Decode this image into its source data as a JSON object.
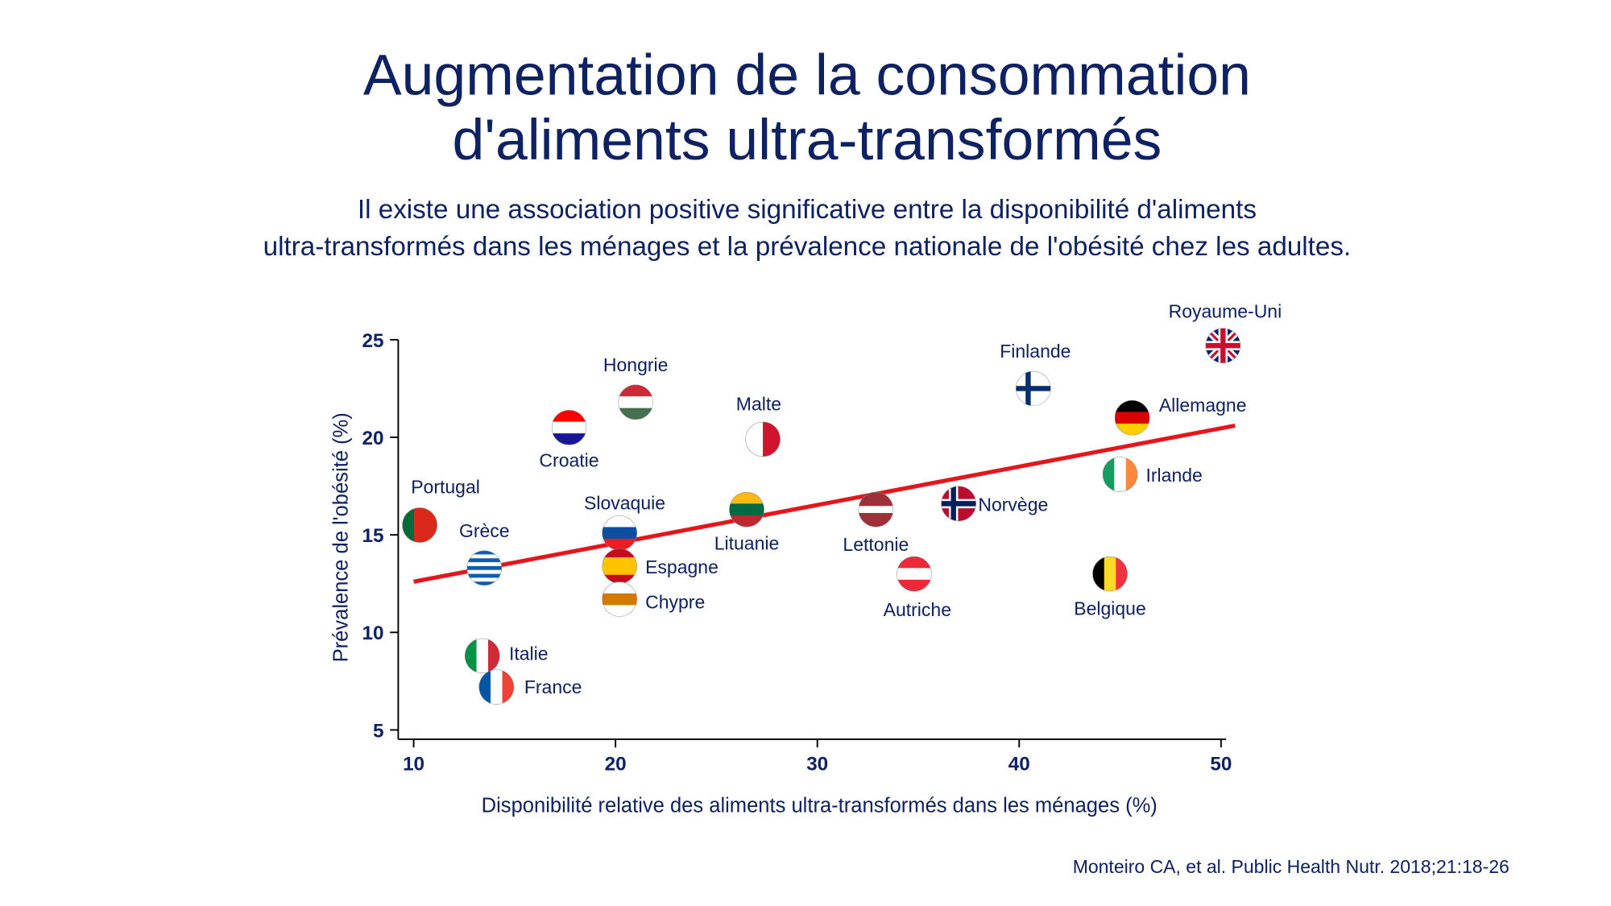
{
  "chart_data": {
    "type": "scatter",
    "title": [
      "Augmentation de la consommation",
      "d'aliments ultra-transformés"
    ],
    "subtitle": [
      "Il existe une association positive significative entre la disponibilité d'aliments",
      "ultra-transformés dans les ménages et la prévalence nationale de l'obésité chez les adultes."
    ],
    "x_label": "Disponibilité relative des aliments ultra-transformés dans les ménages (%)",
    "y_label": "Prévalence de l'obésité (%)",
    "source": "Monteiro CA, et al. Public Health Nutr. 2018;21:18-26",
    "xlim": [
      9.2,
      50.7
    ],
    "ylim": [
      4.4,
      25.3
    ],
    "xticks": [
      10,
      20,
      30,
      40,
      50
    ],
    "yticks": [
      5,
      10,
      15,
      20,
      25
    ],
    "trendline": {
      "x": [
        10,
        50.7
      ],
      "y": [
        12.6,
        20.6
      ],
      "color": "#e8141b"
    },
    "points": [
      {
        "name": "Portugal",
        "x": 10.3,
        "y": 15.5,
        "flag": {
          "dir": "v",
          "colors": [
            "#046a38",
            "#da291c",
            "#da291c"
          ]
        }
      },
      {
        "name": "Grèce",
        "x": 13.5,
        "y": 13.3,
        "flag": {
          "dir": "h",
          "colors": [
            "#0d5eaf",
            "#ffffff",
            "#0d5eaf",
            "#ffffff",
            "#0d5eaf",
            "#ffffff",
            "#0d5eaf",
            "#ffffff",
            "#0d5eaf"
          ]
        }
      },
      {
        "name": "Italie",
        "x": 13.4,
        "y": 8.8,
        "flag": {
          "dir": "v",
          "colors": [
            "#009246",
            "#ffffff",
            "#ce2b37"
          ]
        }
      },
      {
        "name": "France",
        "x": 14.1,
        "y": 7.2,
        "flag": {
          "dir": "v",
          "colors": [
            "#0055a4",
            "#ffffff",
            "#ef4135"
          ]
        }
      },
      {
        "name": "Croatie",
        "x": 17.7,
        "y": 20.5,
        "flag": {
          "dir": "h",
          "colors": [
            "#ff0000",
            "#ffffff",
            "#171796"
          ]
        }
      },
      {
        "name": "Hongrie",
        "x": 21.0,
        "y": 21.8,
        "flag": {
          "dir": "h",
          "colors": [
            "#ce2939",
            "#ffffff",
            "#477050"
          ]
        }
      },
      {
        "name": "Slovaquie",
        "x": 20.2,
        "y": 15.1,
        "flag": {
          "dir": "h",
          "colors": [
            "#ffffff",
            "#0b4ea2",
            "#ee1c25"
          ]
        }
      },
      {
        "name": "Espagne",
        "x": 20.2,
        "y": 13.4,
        "flag": {
          "dir": "h",
          "colors": [
            "#c60b1e",
            "#ffc400",
            "#ffc400",
            "#c60b1e"
          ]
        }
      },
      {
        "name": "Chypre",
        "x": 20.2,
        "y": 11.7,
        "flag": {
          "dir": "h",
          "colors": [
            "#ffffff",
            "#d57800",
            "#ffffff"
          ]
        }
      },
      {
        "name": "Malte",
        "x": 27.3,
        "y": 19.9,
        "flag": {
          "dir": "v",
          "colors": [
            "#ffffff",
            "#cf142b"
          ]
        }
      },
      {
        "name": "Lituanie",
        "x": 26.5,
        "y": 16.3,
        "flag": {
          "dir": "h",
          "colors": [
            "#fdb913",
            "#006a44",
            "#c1272d"
          ]
        }
      },
      {
        "name": "Lettonie",
        "x": 32.9,
        "y": 16.3,
        "flag": {
          "dir": "h",
          "colors": [
            "#9e3039",
            "#9e3039",
            "#ffffff",
            "#9e3039",
            "#9e3039"
          ]
        }
      },
      {
        "name": "Autriche",
        "x": 34.8,
        "y": 13.0,
        "flag": {
          "dir": "h",
          "colors": [
            "#ed2939",
            "#ffffff",
            "#ed2939"
          ]
        }
      },
      {
        "name": "Norvège",
        "x": 37.0,
        "y": 16.6,
        "flag": {
          "dir": "h",
          "colors": [
            "#ba0c2f"
          ],
          "cross": [
            "#ffffff",
            "#00205b"
          ]
        }
      },
      {
        "name": "Finlande",
        "x": 40.7,
        "y": 22.5,
        "flag": {
          "dir": "h",
          "colors": [
            "#ffffff"
          ],
          "cross": [
            "#ffffff",
            "#002f6c"
          ]
        }
      },
      {
        "name": "Royaume-Uni",
        "x": 50.1,
        "y": 24.7,
        "flag": {
          "dir": "h",
          "colors": [
            "#012169"
          ],
          "cross": [
            "#ffffff",
            "#c8102e"
          ],
          "diag": true
        }
      },
      {
        "name": "Allemagne",
        "x": 45.6,
        "y": 21.0,
        "flag": {
          "dir": "h",
          "colors": [
            "#000000",
            "#dd0000",
            "#ffce00"
          ]
        }
      },
      {
        "name": "Irlande",
        "x": 45.0,
        "y": 18.1,
        "flag": {
          "dir": "v",
          "colors": [
            "#169b62",
            "#ffffff",
            "#ff883e"
          ]
        }
      },
      {
        "name": "Belgique",
        "x": 44.5,
        "y": 13.0,
        "flag": {
          "dir": "v",
          "colors": [
            "#000000",
            "#fdda24",
            "#ef3340"
          ]
        }
      }
    ]
  }
}
